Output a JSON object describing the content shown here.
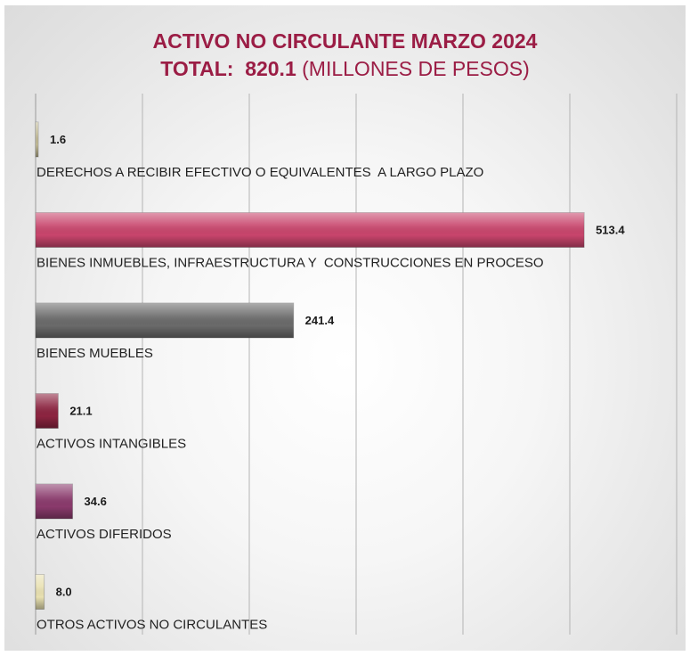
{
  "chart_data": {
    "type": "bar",
    "orientation": "horizontal",
    "title": "ACTIVO NO CIRCULANTE MARZO 2024",
    "subtitle": {
      "prefix": "TOTAL:",
      "value": "820.1",
      "unit": "(MILLONES DE PESOS)"
    },
    "xlim": [
      0,
      600
    ],
    "grid": true,
    "categories": [
      "DERECHOS A RECIBIR EFECTIVO O EQUIVALENTES  A LARGO PLAZO",
      "BIENES INMUEBLES, INFRAESTRUCTURA Y  CONSTRUCCIONES EN PROCESO",
      "BIENES MUEBLES",
      "ACTIVOS INTANGIBLES",
      "ACTIVOS DIFERIDOS",
      "OTROS ACTIVOS NO CIRCULANTES"
    ],
    "values": [
      1.6,
      513.4,
      241.4,
      21.1,
      34.6,
      8.0
    ],
    "labels": [
      "1.6",
      "513.4",
      "241.4",
      "21.1",
      "34.6",
      "8.0"
    ],
    "colors": [
      "#c8c09a",
      "#c8456c",
      "#6a6a6a",
      "#8c2440",
      "#8a3a6c",
      "#e8e0b0"
    ]
  }
}
